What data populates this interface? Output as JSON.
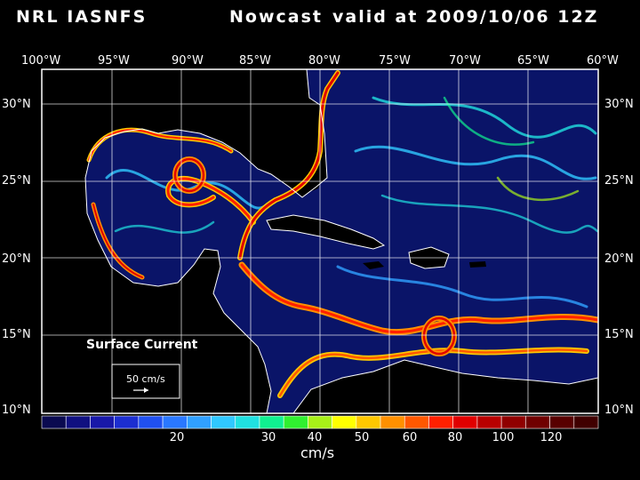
{
  "title": {
    "left": "NRL IASNFS",
    "middle": "Nowcast",
    "right": "valid at 2009/10/06 12Z"
  },
  "axes": {
    "lon_labels": [
      "100°W",
      "95°W",
      "90°W",
      "85°W",
      "80°W",
      "75°W",
      "70°W",
      "65°W",
      "60°W"
    ],
    "lat_labels": [
      "30°N",
      "25°N",
      "20°N",
      "15°N",
      "10°N"
    ]
  },
  "legend_box": {
    "title": "Surface Current",
    "reference": "50 cm/s"
  },
  "colorbar": {
    "unit": "cm/s",
    "labels": [
      "20",
      "30",
      "40",
      "50",
      "60",
      "80",
      "100",
      "120"
    ],
    "colors": [
      "#0a0a50",
      "#101080",
      "#1818a8",
      "#1c2ed0",
      "#2050f0",
      "#2a78ff",
      "#30a0ff",
      "#30c8ff",
      "#20e0e0",
      "#10f090",
      "#30f030",
      "#a8f018",
      "#ffff00",
      "#ffc800",
      "#ff9000",
      "#ff5800",
      "#ff2000",
      "#e00000",
      "#b80000",
      "#900000",
      "#700000",
      "#580000",
      "#400000"
    ]
  },
  "colors": {
    "land": "#000000",
    "ocean": "#0a1468",
    "coast": "#ffffff",
    "grid": "#ffffff"
  }
}
